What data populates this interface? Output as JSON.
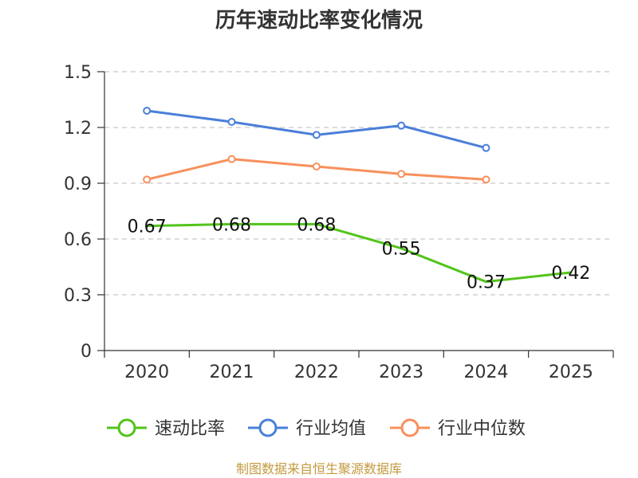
{
  "chart_data": {
    "type": "line",
    "title": "历年速动比率变化情况",
    "categories": [
      "2020",
      "2021",
      "2022",
      "2023",
      "2024",
      "2025"
    ],
    "ylim": [
      0,
      1.5
    ],
    "yticks": [
      {
        "value": 0,
        "label": "0"
      },
      {
        "value": 0.3,
        "label": "0.3"
      },
      {
        "value": 0.6,
        "label": "0.6"
      },
      {
        "value": 0.9,
        "label": "0.9"
      },
      {
        "value": 1.2,
        "label": "1.2"
      },
      {
        "value": 1.5,
        "label": "1.5"
      }
    ],
    "grid": true,
    "legend_position": "bottom",
    "series": [
      {
        "name": "速动比率",
        "color": "#52c41a",
        "values": [
          0.67,
          0.68,
          0.68,
          0.55,
          0.37,
          0.42
        ],
        "labels": [
          "0.67",
          "0.68",
          "0.68",
          "0.55",
          "0.37",
          "0.42"
        ],
        "show_labels": true,
        "show_markers": false
      },
      {
        "name": "行业均值",
        "color": "#4a7fd9",
        "values": [
          1.29,
          1.23,
          1.16,
          1.21,
          1.09,
          null
        ],
        "show_labels": false,
        "show_markers": true
      },
      {
        "name": "行业中位数",
        "color": "#f7905c",
        "values": [
          0.92,
          1.03,
          0.99,
          0.95,
          0.92,
          null
        ],
        "show_labels": false,
        "show_markers": true
      }
    ],
    "source": "制图数据来自恒生聚源数据库"
  }
}
